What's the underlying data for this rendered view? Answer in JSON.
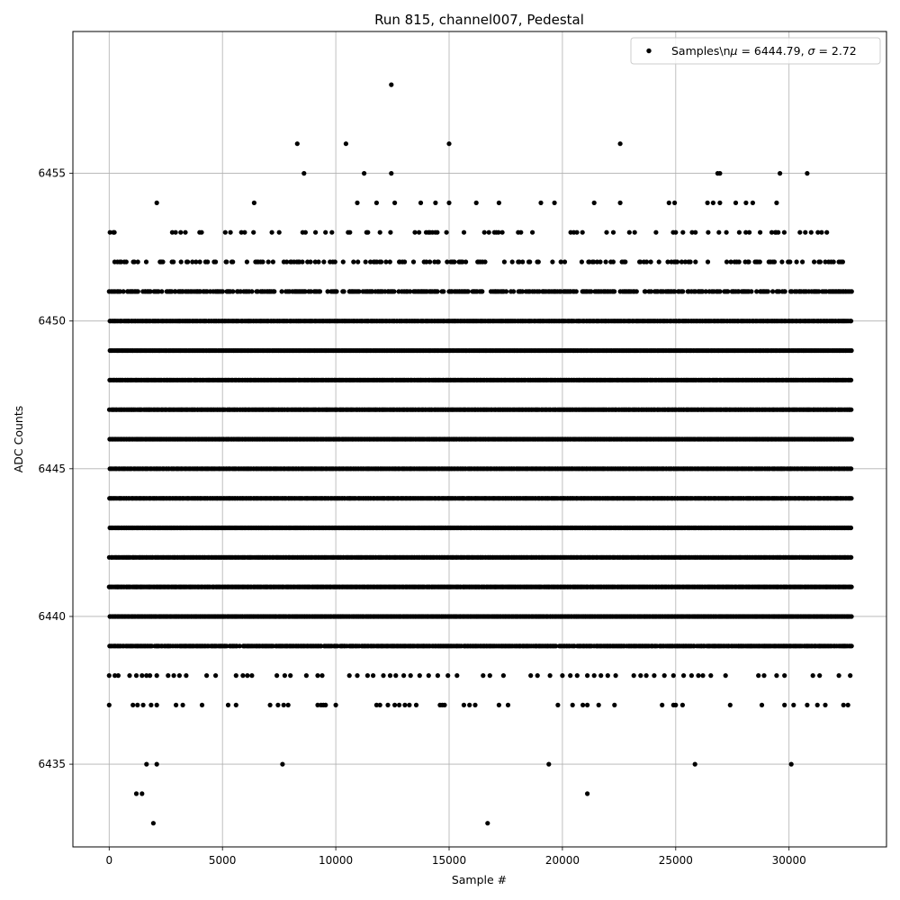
{
  "chart_data": {
    "type": "scatter",
    "title": "Run 815, channel007, Pedestal",
    "xlabel": "Sample #",
    "ylabel": "ADC Counts",
    "xlim": [
      -1600,
      34300
    ],
    "ylim": [
      6432.2,
      6459.8
    ],
    "xticks": [
      0,
      5000,
      10000,
      15000,
      20000,
      25000,
      30000
    ],
    "xtick_labels": [
      "0",
      "5000",
      "10000",
      "15000",
      "20000",
      "25000",
      "30000"
    ],
    "yticks": [
      6435,
      6440,
      6445,
      6450,
      6455
    ],
    "ytick_labels": [
      "6435",
      "6440",
      "6445",
      "6450",
      "6455"
    ],
    "grid": true,
    "legend_position": "top-right",
    "marker_color": "#000000",
    "series": [
      {
        "name": "Samples\\n$\\mu$ = 6444.79, $\\sigma$ = 2.72",
        "legend_parts": [
          "Samples\\n",
          "μ",
          " = 6444.79, ",
          "σ",
          " = 2.72"
        ],
        "n_samples": 32768,
        "mean": 6444.79,
        "sigma": 2.72,
        "dense_levels": [
          {
            "y": 6437,
            "x": [
              0,
              1050,
              1250,
              1500,
              1850,
              2100,
              2950,
              3250,
              4100,
              5250,
              5600,
              7100,
              7450,
              7700,
              7900,
              9200,
              9350,
              9450,
              9550,
              10000,
              11800,
              11950,
              12300,
              12600,
              12800,
              13050,
              13250,
              13550,
              14600,
              14700,
              14800,
              15650,
              15900,
              16150,
              17200,
              17600,
              19800,
              20450,
              20900,
              21100,
              21600,
              22300,
              24400,
              24900,
              25000,
              25300,
              27400,
              28800,
              29800,
              30200,
              30800,
              31250,
              31600,
              32400,
              32600
            ]
          },
          {
            "y": 6438,
            "x": [
              0,
              250,
              400,
              900,
              1200,
              1450,
              1650,
              1800,
              2100,
              2600,
              2850,
              3100,
              3400,
              4300,
              4700,
              5600,
              5900,
              6100,
              6300,
              7400,
              7750,
              8000,
              8700,
              9200,
              9400,
              10600,
              10950,
              11400,
              11650,
              12100,
              12400,
              12650,
              13000,
              13300,
              13700,
              14100,
              14500,
              14950,
              15350,
              16500,
              16800,
              17400,
              18600,
              18900,
              19450,
              20000,
              20350,
              20650,
              21100,
              21400,
              21700,
              22000,
              22350,
              23150,
              23450,
              23700,
              24050,
              24500,
              24900,
              25350,
              25700,
              26000,
              26200,
              26550,
              27200,
              28650,
              28900,
              29450,
              29800,
              31050,
              31350,
              32200,
              32700
            ]
          }
        ],
        "outliers": [
          {
            "x": 12450,
            "y": 6458
          },
          {
            "x": 8300,
            "y": 6456
          },
          {
            "x": 10450,
            "y": 6456
          },
          {
            "x": 15000,
            "y": 6456
          },
          {
            "x": 22550,
            "y": 6456
          },
          {
            "x": 8600,
            "y": 6455
          },
          {
            "x": 11250,
            "y": 6455
          },
          {
            "x": 12450,
            "y": 6455
          },
          {
            "x": 26850,
            "y": 6455
          },
          {
            "x": 26950,
            "y": 6455
          },
          {
            "x": 29600,
            "y": 6455
          },
          {
            "x": 30800,
            "y": 6455
          },
          {
            "x": 2100,
            "y": 6454
          },
          {
            "x": 6400,
            "y": 6454
          },
          {
            "x": 10950,
            "y": 6454
          },
          {
            "x": 11800,
            "y": 6454
          },
          {
            "x": 12600,
            "y": 6454
          },
          {
            "x": 13750,
            "y": 6454
          },
          {
            "x": 14400,
            "y": 6454
          },
          {
            "x": 15000,
            "y": 6454
          },
          {
            "x": 16200,
            "y": 6454
          },
          {
            "x": 17200,
            "y": 6454
          },
          {
            "x": 19050,
            "y": 6454
          },
          {
            "x": 19650,
            "y": 6454
          },
          {
            "x": 21400,
            "y": 6454
          },
          {
            "x": 22550,
            "y": 6454
          },
          {
            "x": 24700,
            "y": 6454
          },
          {
            "x": 24950,
            "y": 6454
          },
          {
            "x": 26400,
            "y": 6454
          },
          {
            "x": 26650,
            "y": 6454
          },
          {
            "x": 26950,
            "y": 6454
          },
          {
            "x": 27650,
            "y": 6454
          },
          {
            "x": 28100,
            "y": 6454
          },
          {
            "x": 28400,
            "y": 6454
          },
          {
            "x": 29450,
            "y": 6454
          },
          {
            "x": 1650,
            "y": 6435
          },
          {
            "x": 2100,
            "y": 6435
          },
          {
            "x": 7650,
            "y": 6435
          },
          {
            "x": 19400,
            "y": 6435
          },
          {
            "x": 25850,
            "y": 6435
          },
          {
            "x": 30100,
            "y": 6435
          },
          {
            "x": 1200,
            "y": 6434
          },
          {
            "x": 1450,
            "y": 6434
          },
          {
            "x": 21100,
            "y": 6434
          },
          {
            "x": 1950,
            "y": 6433
          },
          {
            "x": 16700,
            "y": 6433
          }
        ]
      }
    ]
  }
}
